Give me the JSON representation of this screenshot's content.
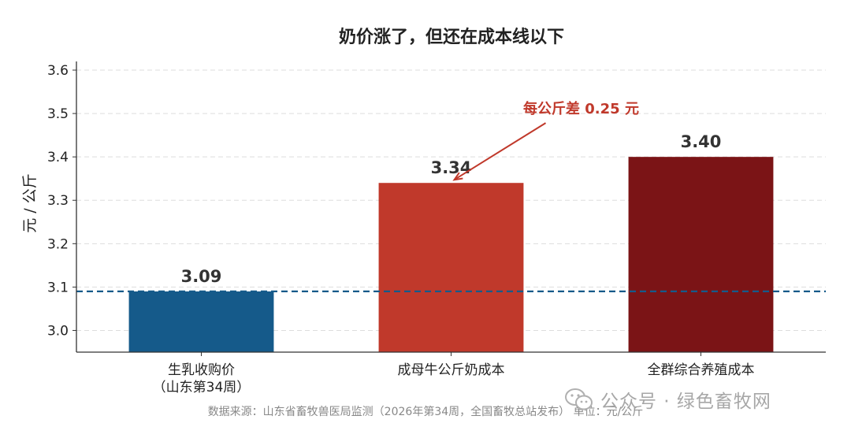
{
  "chart_data": {
    "type": "bar",
    "title": "奶价涨了，但还在成本线以下",
    "ylabel": "元 / 公斤",
    "categories": [
      [
        "生乳收购价",
        "（山东第34周）"
      ],
      [
        "成母牛公斤奶成本"
      ],
      [
        "全群综合养殖成本"
      ]
    ],
    "values": [
      3.09,
      3.34,
      3.4
    ],
    "value_labels": [
      "3.09",
      "3.34",
      "3.40"
    ],
    "bar_colors": [
      "#155a8a",
      "#c0392b",
      "#7b1416"
    ],
    "ylim": [
      2.95,
      3.62
    ],
    "yticks": [
      3.0,
      3.1,
      3.2,
      3.3,
      3.4,
      3.5,
      3.6
    ],
    "ytick_labels": [
      "3.0",
      "3.1",
      "3.2",
      "3.3",
      "3.4",
      "3.5",
      "3.6"
    ],
    "grid": true,
    "reference_line": {
      "value": 3.09,
      "color": "#155a8a",
      "style": "dashed"
    },
    "annotation": {
      "text": "每公斤差 0.25 元",
      "color": "#c0392b",
      "points_to_category": 1
    },
    "source": "数据来源：山东省畜牧兽医局监测（2026年第34周，全国畜牧总站发布）    单位：元/公斤"
  },
  "watermark": {
    "text": "公众号 · 绿色畜牧网"
  }
}
